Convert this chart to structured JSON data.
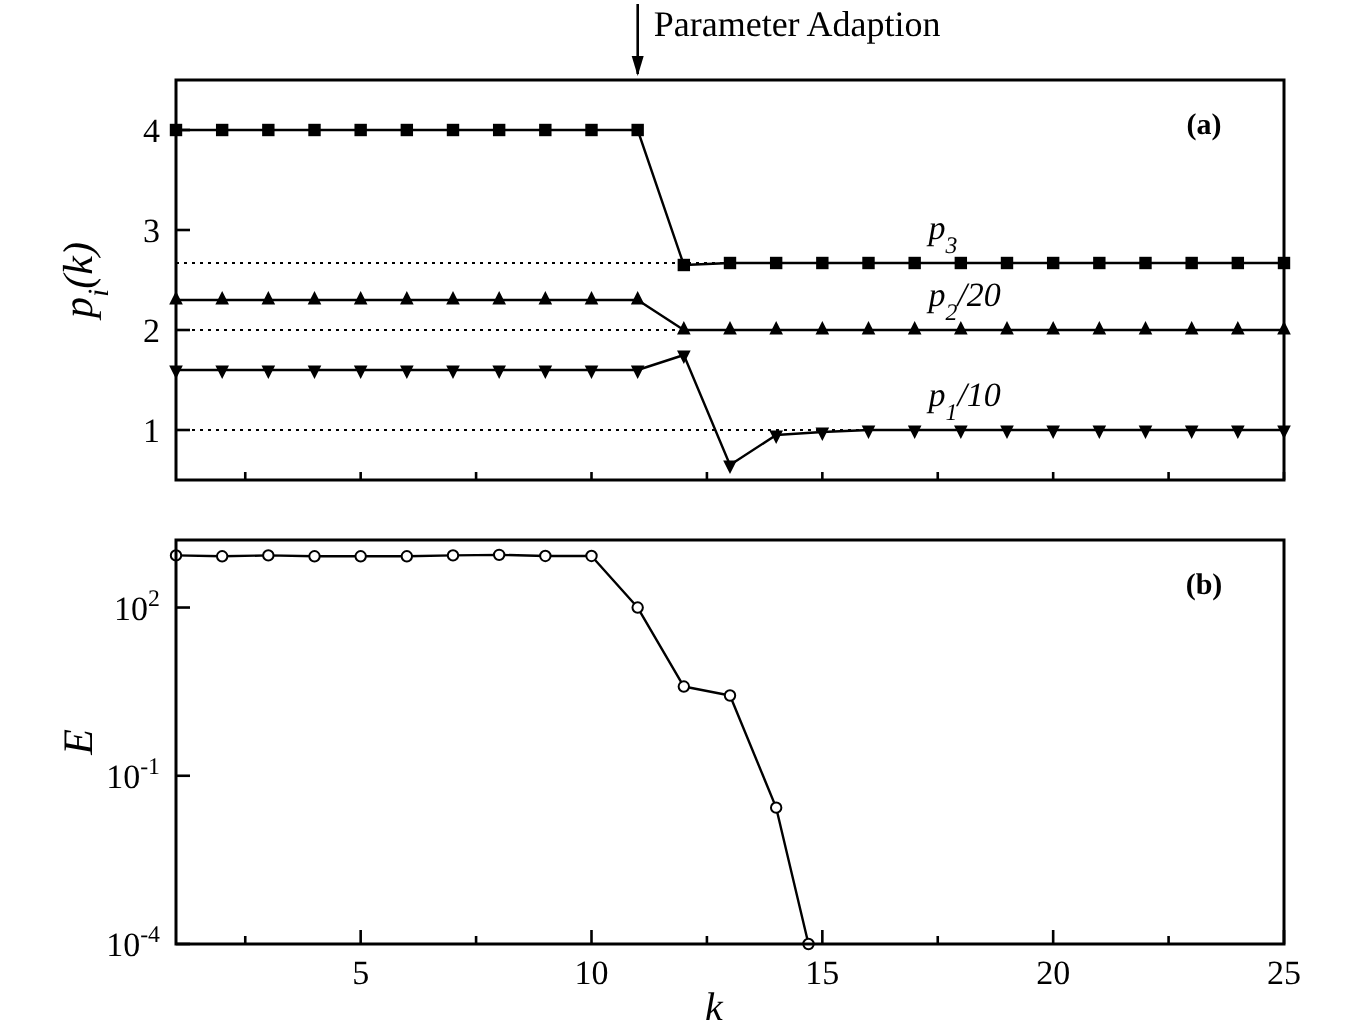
{
  "chart_data": [
    {
      "type": "line",
      "ylabel": "p$_{i}$(k)",
      "annotations": [
        "Parameter Adaption",
        "(a)"
      ],
      "x": [
        1,
        2,
        3,
        4,
        5,
        6,
        7,
        8,
        9,
        10,
        11,
        12,
        13,
        14,
        15,
        16,
        17,
        18,
        19,
        20,
        21,
        22,
        23,
        24,
        25
      ],
      "xlim": [
        1,
        25
      ],
      "ylim": [
        0.5,
        4.5
      ],
      "xticks": [
        {
          "value": 2.5,
          "label": null
        },
        {
          "value": 5,
          "label": null
        },
        {
          "value": 7.5,
          "label": null
        },
        {
          "value": 10,
          "label": null
        },
        {
          "value": 12.5,
          "label": null
        },
        {
          "value": 15,
          "label": null
        },
        {
          "value": 17.5,
          "label": null
        },
        {
          "value": 20,
          "label": null
        },
        {
          "value": 22.5,
          "label": null
        },
        {
          "value": 25,
          "label": null
        }
      ],
      "yticks": [
        1,
        2,
        3,
        4
      ],
      "tick_labels": "y",
      "grid": false,
      "line_style": "solid",
      "ref_lines": [
        {
          "axis": "y",
          "value": 2.67,
          "line_style": "dotted",
          "color": "#000000"
        },
        {
          "axis": "y",
          "value": 2,
          "line_style": "dotted",
          "color": "#000000"
        },
        {
          "axis": "y",
          "value": 1,
          "line_style": "dotted",
          "color": "#000000"
        }
      ],
      "series": [
        {
          "name": "p$_{3}$",
          "color": "#000000",
          "marker": "square",
          "values": [
            4,
            4,
            4,
            4,
            4,
            4,
            4,
            4,
            4,
            4,
            4,
            2.65,
            2.67,
            2.67,
            2.67,
            2.67,
            2.67,
            2.67,
            2.67,
            2.67,
            2.67,
            2.67,
            2.67,
            2.67,
            2.67
          ]
        },
        {
          "name": "p$_{2}$/20",
          "color": "#000000",
          "marker": "triangle",
          "values": [
            2.3,
            2.3,
            2.3,
            2.3,
            2.3,
            2.3,
            2.3,
            2.3,
            2.3,
            2.3,
            2.3,
            2,
            2,
            2,
            2,
            2,
            2,
            2,
            2,
            2,
            2,
            2,
            2,
            2,
            2
          ]
        },
        {
          "name": "p$_{1}$/10",
          "color": "#000000",
          "marker": "triangle-down",
          "values": [
            1.6,
            1.6,
            1.6,
            1.6,
            1.6,
            1.6,
            1.6,
            1.6,
            1.6,
            1.6,
            1.6,
            1.75,
            0.65,
            0.95,
            0.98,
            1,
            1,
            1,
            1,
            1,
            1,
            1,
            1,
            1,
            1
          ]
        }
      ]
    },
    {
      "type": "line",
      "xlabel": "k",
      "ylabel": "E",
      "annotations": [
        "(b)"
      ],
      "log": "y",
      "x": [
        1,
        2,
        3,
        4,
        5,
        6,
        7,
        8,
        9,
        10,
        11,
        12,
        13,
        14,
        14.7
      ],
      "xlim": [
        1,
        25
      ],
      "ylim": [
        0.0001,
        1600
      ],
      "xticks": [
        {
          "value": 2.5,
          "label": null
        },
        5,
        {
          "value": 7.5,
          "label": null
        },
        10,
        {
          "value": 12.5,
          "label": null
        },
        15,
        {
          "value": 17.5,
          "label": null
        },
        20,
        {
          "value": 22.5,
          "label": null
        },
        25
      ],
      "yticks": [
        {
          "value": 0.0001,
          "label": "10$^{-4}$"
        },
        {
          "value": 0.1,
          "label": "10$^{-1}$"
        },
        {
          "value": 100,
          "label": "10$^{2}$"
        }
      ],
      "grid": false,
      "marker": "circle",
      "line_style": "solid",
      "series": [
        {
          "color": "#000000",
          "values": [
            850,
            820,
            850,
            820,
            820,
            820,
            850,
            870,
            830,
            830,
            100,
            3.9,
            2.7,
            0.027,
            0.0001
          ]
        }
      ]
    }
  ]
}
